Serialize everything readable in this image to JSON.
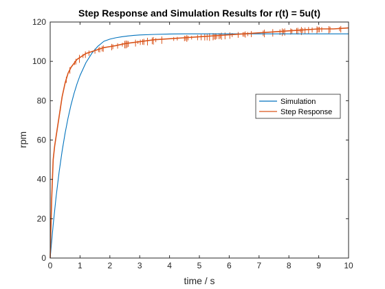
{
  "chart_data": {
    "type": "line",
    "title": "Step Response and Simulation Results for r(t) = 5u(t)",
    "xlabel": "time / s",
    "ylabel": "rpm",
    "xlim": [
      0,
      10
    ],
    "ylim": [
      0,
      120
    ],
    "xticks": [
      "0",
      "1",
      "2",
      "3",
      "4",
      "5",
      "6",
      "7",
      "8",
      "9",
      "10"
    ],
    "yticks": [
      "0",
      "20",
      "40",
      "60",
      "80",
      "100",
      "120"
    ],
    "grid": false,
    "legend_position": "right",
    "series": [
      {
        "name": "Simulation",
        "color": "#0072BD",
        "x": [
          0,
          0.1,
          0.2,
          0.3,
          0.4,
          0.5,
          0.6,
          0.7,
          0.8,
          0.9,
          1.0,
          1.2,
          1.4,
          1.6,
          1.8,
          2.0,
          2.2,
          2.4,
          2.6,
          2.8,
          3.0,
          3.5,
          4.0,
          4.5,
          5.0,
          6.0,
          7.0,
          8.0,
          9.0,
          10.0
        ],
        "y": [
          0,
          16.9,
          31.4,
          43.8,
          54.4,
          63.5,
          71.3,
          78.0,
          83.7,
          88.6,
          92.8,
          99.4,
          104.2,
          107.7,
          110.2,
          111.3,
          112.0,
          112.5,
          112.9,
          113.2,
          113.4,
          113.7,
          113.9,
          114.0,
          114.0,
          114.0,
          114.0,
          114.0,
          114.0,
          114.0
        ]
      },
      {
        "name": "Step Response",
        "color": "#D95319",
        "x": [
          0,
          0.05,
          0.1,
          0.15,
          0.2,
          0.3,
          0.4,
          0.5,
          0.6,
          0.7,
          0.8,
          0.9,
          1.0,
          1.2,
          1.4,
          1.6,
          1.8,
          2.0,
          2.2,
          2.5,
          3.0,
          3.5,
          4.0,
          4.5,
          5.0,
          5.5,
          6.0,
          6.5,
          7.0,
          7.5,
          8.0,
          8.5,
          9.0,
          9.5,
          10.0
        ],
        "y": [
          0,
          30,
          50,
          57,
          62,
          72,
          82,
          89,
          94,
          97,
          99,
          101,
          102,
          104,
          105,
          106,
          107,
          107.5,
          108,
          109,
          110,
          111,
          111.5,
          112,
          112.5,
          113,
          113.5,
          114,
          114.5,
          115,
          115.5,
          116,
          116.5,
          116.5,
          117
        ]
      }
    ]
  }
}
